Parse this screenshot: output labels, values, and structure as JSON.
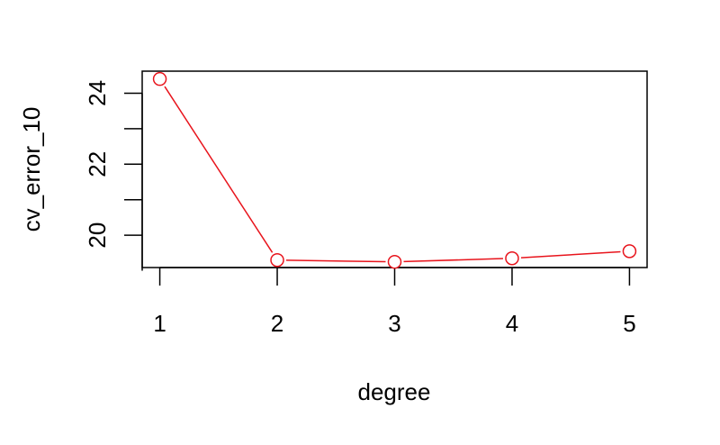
{
  "chart_data": {
    "type": "line",
    "title": "",
    "xlabel": "degree",
    "ylabel": "cv_error_10",
    "x": [
      1,
      2,
      3,
      4,
      5
    ],
    "series": [
      {
        "values": [
          24.4,
          19.3,
          19.25,
          19.35,
          19.55
        ]
      }
    ],
    "xlim": [
      0.85,
      5.15
    ],
    "ylim": [
      19.09,
      24.62
    ],
    "x_ticks": [
      1,
      2,
      3,
      4,
      5
    ],
    "y_ticks": [
      19,
      20,
      21,
      22,
      23,
      24
    ],
    "y_tick_labels": [
      {
        "value": 20,
        "label": "20"
      },
      {
        "value": 22,
        "label": "22"
      },
      {
        "value": 24,
        "label": "24"
      }
    ],
    "grid": false,
    "legend": "none",
    "marker": "open-circle",
    "color": "#e8141c"
  }
}
